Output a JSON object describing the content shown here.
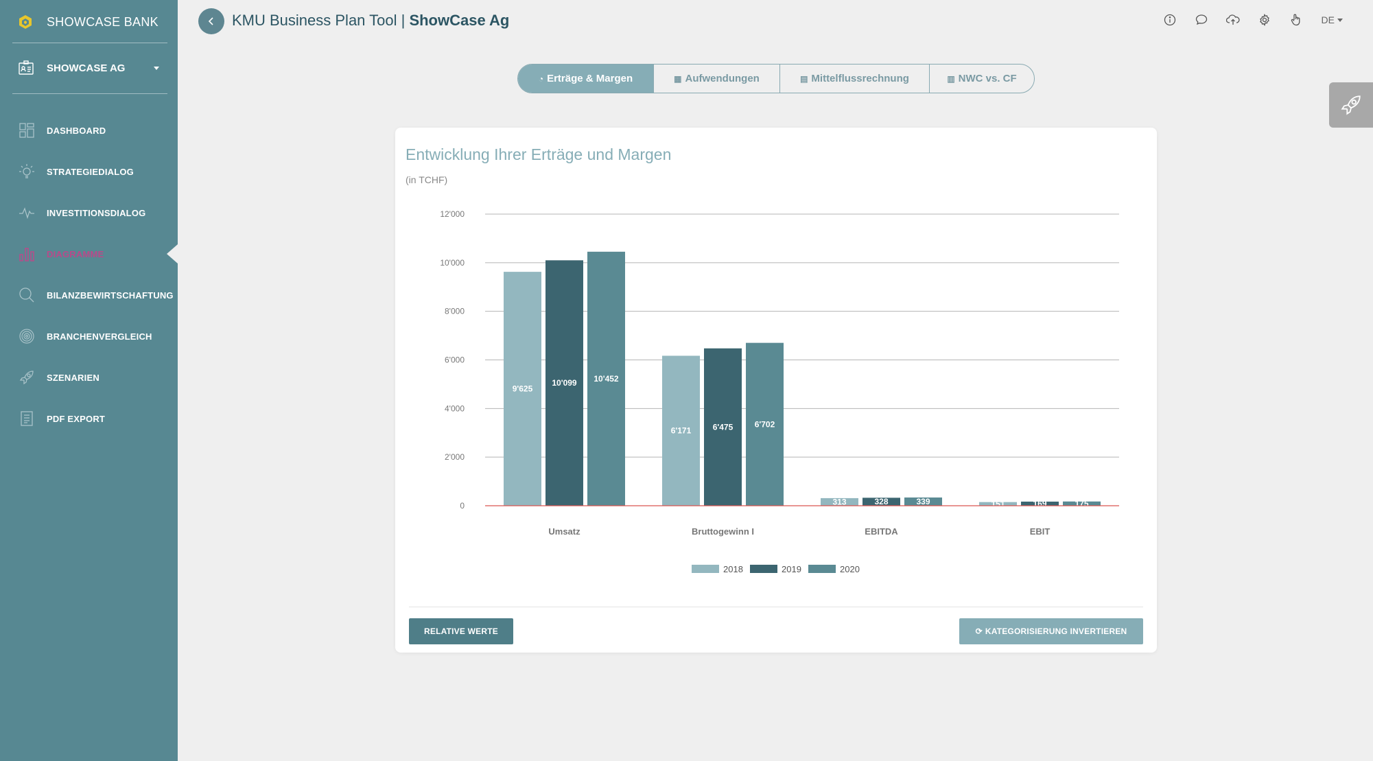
{
  "sidebar": {
    "brand": "SHOWCASE BANK",
    "company": "SHOWCASE AG",
    "items": [
      {
        "label": "DASHBOARD",
        "icon": "dashboard-icon"
      },
      {
        "label": "STRATEGIEDIALOG",
        "icon": "lightbulb-icon"
      },
      {
        "label": "INVESTITIONSDIALOG",
        "icon": "pulse-icon"
      },
      {
        "label": "DIAGRAMME",
        "icon": "bar-chart-icon",
        "active": true
      },
      {
        "label": "BILANZBEWIRTSCHAFTUNG",
        "icon": "magnifier-icon"
      },
      {
        "label": "BRANCHENVERGLEICH",
        "icon": "fingerprint-icon"
      },
      {
        "label": "SZENARIEN",
        "icon": "rocket-icon"
      },
      {
        "label": "PDF EXPORT",
        "icon": "document-icon"
      }
    ]
  },
  "header": {
    "title_prefix": "KMU Business Plan Tool | ",
    "title_company": "ShowCase Ag",
    "language": "DE",
    "icons": [
      "info-icon",
      "chat-icon",
      "cloud-upload-icon",
      "settings-icon",
      "hand-pointer-icon"
    ]
  },
  "tabs": [
    {
      "label": "Erträge & Margen",
      "active": true,
      "icon": "chart-pie-icon"
    },
    {
      "label": "Aufwendungen",
      "active": false,
      "icon": "table-icon"
    },
    {
      "label": "Mittelflussrechnung",
      "active": false,
      "icon": "money-icon"
    },
    {
      "label": "NWC vs. CF",
      "active": false,
      "icon": "list-icon"
    }
  ],
  "card": {
    "title": "Entwicklung Ihrer Erträge und Margen",
    "subtitle": "(in TCHF)",
    "button_relative": "RELATIVE WERTE",
    "button_invert": "KATEGORISIERUNG INVERTIEREN"
  },
  "colors": {
    "sidebar": "#578892",
    "active_nav": "#b84a8a",
    "series_2018": "#93b7bf",
    "series_2019": "#3c6570",
    "series_2020": "#5a8a93",
    "zero_line": "#d9534f"
  },
  "chart_data": {
    "type": "bar",
    "categories": [
      "Umsatz",
      "Bruttogewinn I",
      "EBITDA",
      "EBIT"
    ],
    "series": [
      {
        "name": "2018",
        "values": [
          9625,
          6171,
          313,
          151
        ],
        "labels": [
          "9'625",
          "6'171",
          "313",
          "151"
        ]
      },
      {
        "name": "2019",
        "values": [
          10099,
          6475,
          328,
          169
        ],
        "labels": [
          "10'099",
          "6'475",
          "328",
          "169"
        ]
      },
      {
        "name": "2020",
        "values": [
          10452,
          6702,
          339,
          175
        ],
        "labels": [
          "10'452",
          "6'702",
          "339",
          "175"
        ]
      }
    ],
    "ylim": [
      0,
      12000
    ],
    "yticks": [
      "0",
      "2'000",
      "4'000",
      "6'000",
      "8'000",
      "10'000",
      "12'000"
    ],
    "grid": true,
    "legend": "bottom"
  }
}
